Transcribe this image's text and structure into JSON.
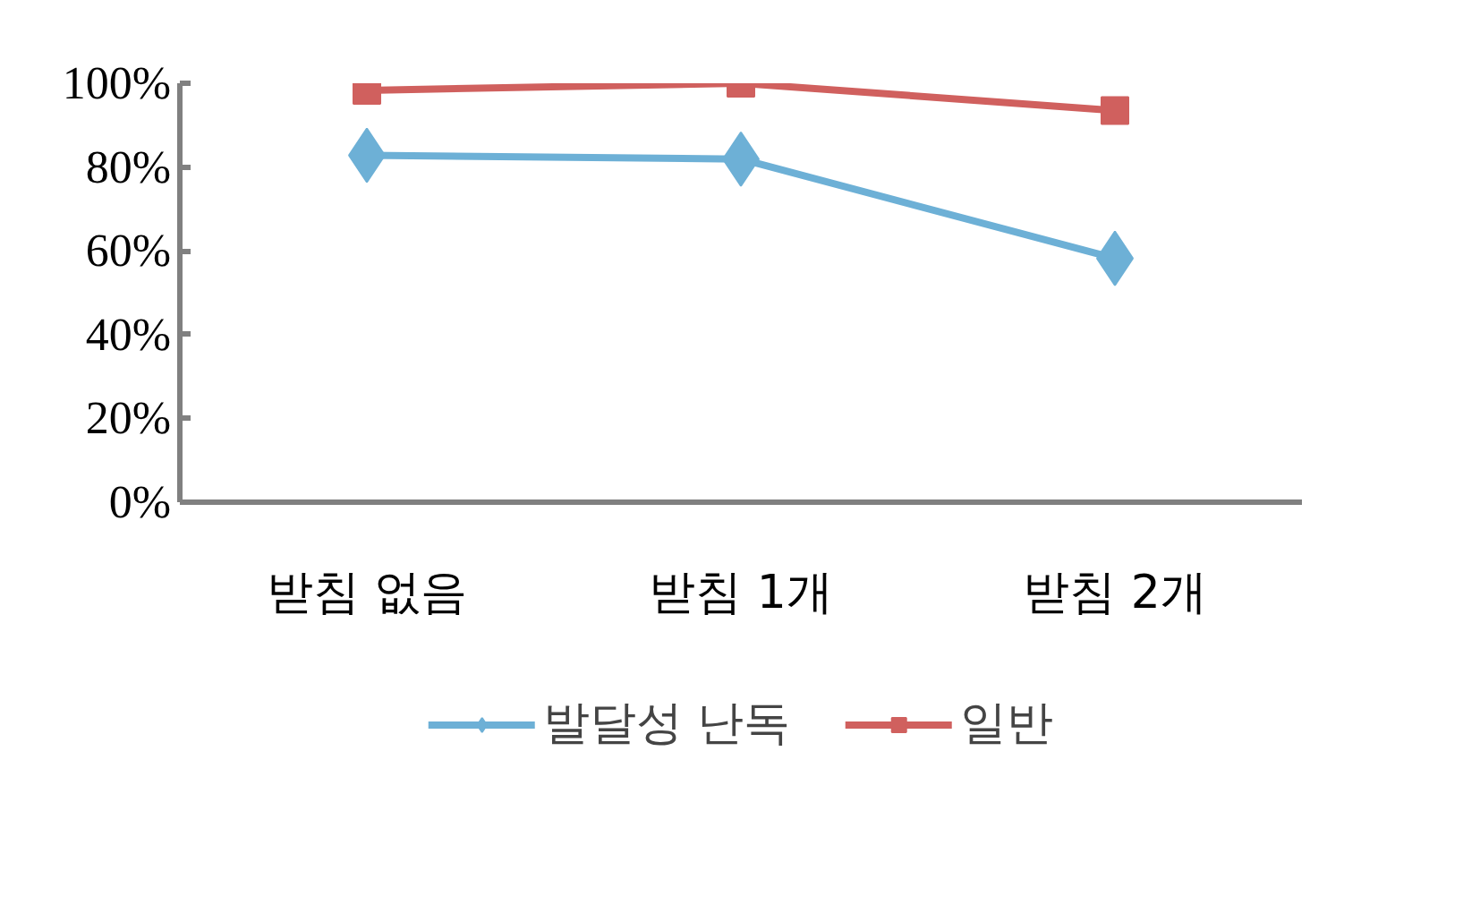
{
  "chart_data": {
    "type": "line",
    "categories": [
      "받침 없음",
      "받침 1개",
      "받침 2개"
    ],
    "series": [
      {
        "name": "발달성 난독",
        "color": "#6db0d6",
        "values": [
          82.8,
          81.9,
          58.2
        ],
        "marker": "diamond"
      },
      {
        "name": "일반",
        "color": "#d0605e",
        "values": [
          98.3,
          100,
          93.5
        ],
        "marker": "square"
      }
    ],
    "ylim": [
      0,
      100
    ],
    "yticks": [
      {
        "value": 0,
        "label": "0%"
      },
      {
        "value": 20,
        "label": "20%"
      },
      {
        "value": 40,
        "label": "40%"
      },
      {
        "value": 60,
        "label": "60%"
      },
      {
        "value": 80,
        "label": "80%"
      },
      {
        "value": 100,
        "label": "100%"
      }
    ],
    "grid": false,
    "legend": "bottom"
  }
}
